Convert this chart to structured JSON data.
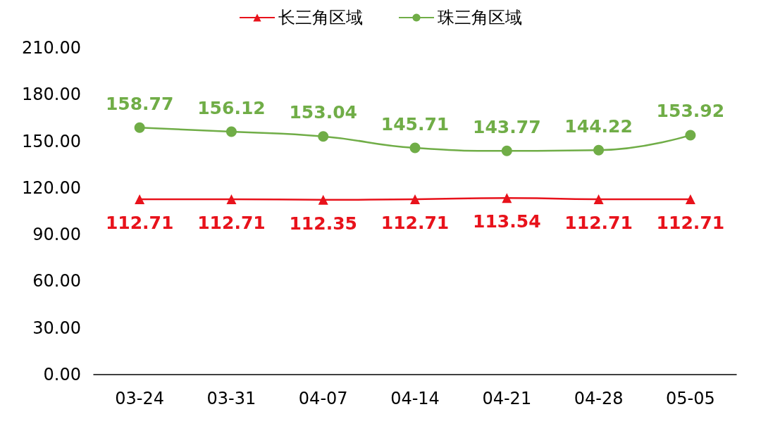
{
  "chart_data": {
    "type": "line",
    "categories": [
      "03-24",
      "03-31",
      "04-07",
      "04-14",
      "04-21",
      "04-28",
      "05-05"
    ],
    "series": [
      {
        "name": "长三角区域",
        "color": "#e8121b",
        "marker": "triangle",
        "values": [
          112.71,
          112.71,
          112.35,
          112.71,
          113.54,
          112.71,
          112.71
        ]
      },
      {
        "name": "珠三角区域",
        "color": "#70ad47",
        "marker": "circle",
        "values": [
          158.77,
          156.12,
          153.04,
          145.71,
          143.77,
          144.22,
          153.92
        ]
      }
    ],
    "ylim": [
      0,
      210
    ],
    "yticks": [
      {
        "value": 0,
        "label": "0.00"
      },
      {
        "value": 30,
        "label": "30.00"
      },
      {
        "value": 60,
        "label": "60.00"
      },
      {
        "value": 90,
        "label": "90.00"
      },
      {
        "value": 120,
        "label": "120.00"
      },
      {
        "value": 150,
        "label": "150.00"
      },
      {
        "value": 180,
        "label": "180.00"
      },
      {
        "value": 210,
        "label": "210.00"
      }
    ],
    "grid": false,
    "legend": "top",
    "data_labels": true
  }
}
